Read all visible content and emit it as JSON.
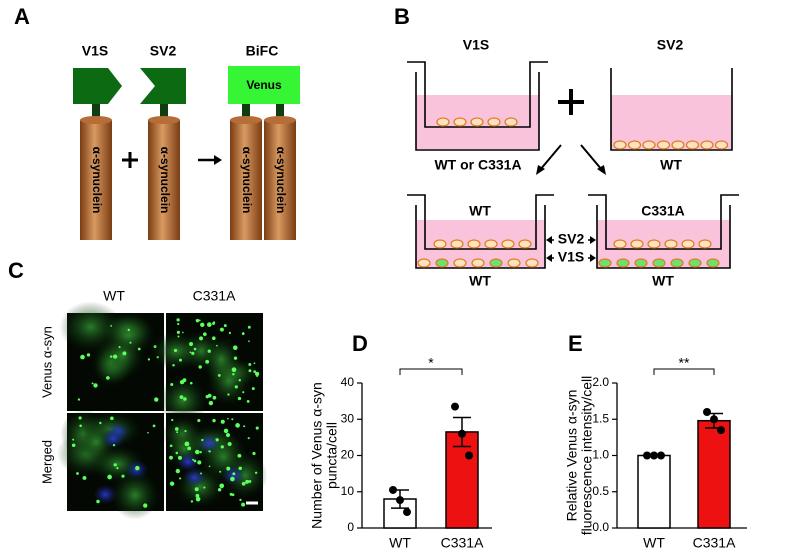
{
  "panel_labels": [
    "A",
    "B",
    "C",
    "D",
    "E"
  ],
  "panel_a": {
    "labels": [
      "V1S",
      "SV2",
      "BiFC"
    ],
    "venus": "Venus",
    "protein": "α-synuclein"
  },
  "panel_b": {
    "top_left": "V1S",
    "top_left_sub": "WT or C331A",
    "top_right": "SV2",
    "top_right_sub": "WT",
    "bottom_left_insert": "WT",
    "bottom_left_sub": "WT",
    "bottom_right_insert": "C331A",
    "bottom_right_sub": "WT",
    "sv2": "SV2",
    "v1s": "V1S"
  },
  "panel_c": {
    "columns": [
      "WT",
      "C331A"
    ],
    "rows": [
      "Venus α-syn",
      "Merged"
    ]
  },
  "chart_data": [
    {
      "type": "bar",
      "ylabel": [
        "Number of Venus α-syn",
        "puncta/cell"
      ],
      "categories": [
        "WT",
        "C331A"
      ],
      "values": [
        8,
        26.5
      ],
      "errors": [
        2.5,
        4
      ],
      "points": [
        [
          10.5,
          7.7,
          4.4
        ],
        [
          33.5,
          26,
          20
        ]
      ],
      "colors": [
        "#ffffff",
        "#ee1111"
      ],
      "ylim": [
        0,
        40
      ],
      "yticks": [
        0,
        10,
        20,
        30,
        40
      ],
      "significance": "*"
    },
    {
      "type": "bar",
      "ylabel": [
        "Relative Venus α-syn",
        "fluorescence intensity/cell"
      ],
      "categories": [
        "WT",
        "C331A"
      ],
      "values": [
        1.0,
        1.48
      ],
      "errors": [
        0,
        0.1
      ],
      "points": [
        [
          1.0,
          1.0,
          1.0
        ],
        [
          1.6,
          1.5,
          1.35
        ]
      ],
      "colors": [
        "#ffffff",
        "#ee1111"
      ],
      "ylim": [
        0,
        2
      ],
      "yticks": [
        {
          "value": 0,
          "label": "0.0"
        },
        {
          "value": 0.5,
          "label": "0.5"
        },
        {
          "value": 1,
          "label": "1.0"
        },
        {
          "value": 1.5,
          "label": "1.5"
        },
        {
          "value": 2,
          "label": "2.0"
        }
      ],
      "significance": "**"
    }
  ]
}
